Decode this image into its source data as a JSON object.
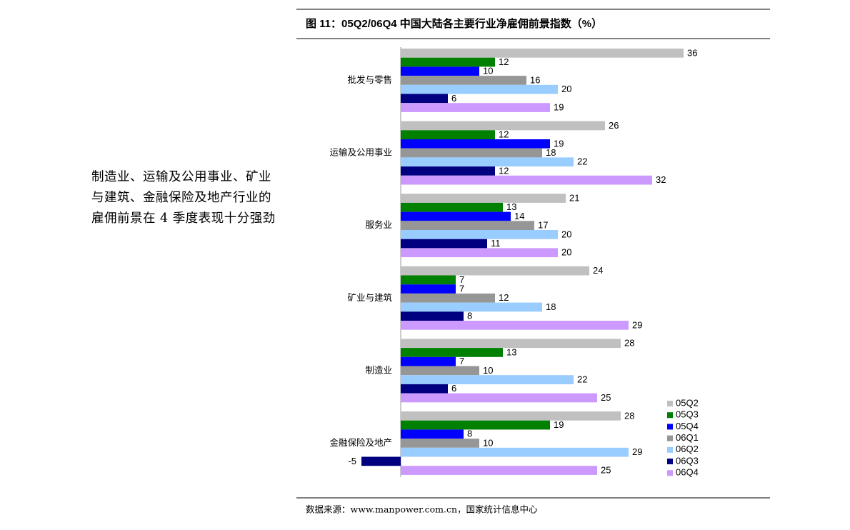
{
  "sidebar": {
    "text": "制造业、运输及公用事业、矿业与建筑、金融保险及地产行业的雇佣前景在 4 季度表现十分强劲"
  },
  "chart_data": {
    "type": "bar",
    "orientation": "horizontal",
    "title": "图 11：05Q2/06Q4 中国大陆各主要行业净雇佣前景指数（%）",
    "categories": [
      "批发与零售",
      "运输及公用事业",
      "服务业",
      "矿业与建筑",
      "制造业",
      "金融保险及地产"
    ],
    "series": [
      {
        "name": "05Q2",
        "color": "#c0c0c0",
        "values": [
          36,
          26,
          21,
          24,
          28,
          28
        ]
      },
      {
        "name": "05Q3",
        "color": "#008000",
        "values": [
          12,
          12,
          13,
          7,
          13,
          19
        ]
      },
      {
        "name": "05Q4",
        "color": "#0000ff",
        "values": [
          10,
          19,
          14,
          7,
          7,
          8
        ]
      },
      {
        "name": "06Q1",
        "color": "#969696",
        "values": [
          16,
          18,
          17,
          12,
          10,
          10
        ]
      },
      {
        "name": "06Q2",
        "color": "#99ccff",
        "values": [
          20,
          22,
          20,
          18,
          22,
          29
        ]
      },
      {
        "name": "06Q3",
        "color": "#000080",
        "values": [
          6,
          12,
          11,
          8,
          6,
          -5
        ]
      },
      {
        "name": "06Q4",
        "color": "#cc99ff",
        "values": [
          19,
          32,
          20,
          29,
          25,
          25
        ]
      }
    ],
    "source": "数据来源：www.manpower.com.cn，国家统计信息中心"
  }
}
